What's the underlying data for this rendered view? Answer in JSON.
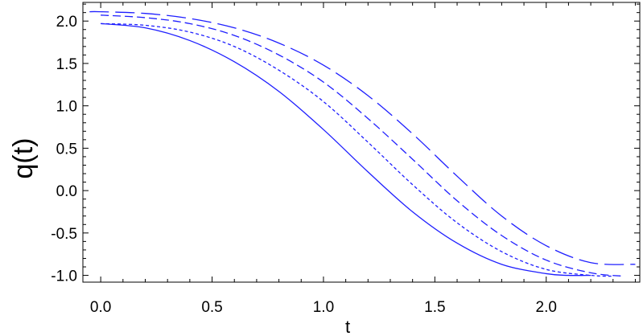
{
  "chart_data": {
    "type": "line",
    "xlabel": "t",
    "ylabel": "q(t)",
    "xlim": [
      -0.08,
      2.42
    ],
    "ylim": [
      -1.08,
      2.22
    ],
    "xticks": [
      "0.0",
      "0.5",
      "1.0",
      "1.5",
      "2.0"
    ],
    "yticks": [
      "-1.0",
      "-0.5",
      "0.0",
      "0.5",
      "1.0",
      "1.5",
      "2.0"
    ],
    "grid": false,
    "line_color": "#1f1fff",
    "series": [
      {
        "style": "solid",
        "x": [
          0.0,
          0.2,
          0.4,
          0.6,
          0.8,
          1.0,
          1.2,
          1.4,
          1.6,
          1.8,
          2.0,
          2.1,
          2.2
        ],
        "y": [
          1.97,
          1.92,
          1.77,
          1.52,
          1.17,
          0.72,
          0.22,
          -0.25,
          -0.62,
          -0.87,
          -0.98,
          -1.0,
          -1.0
        ]
      },
      {
        "style": "short-dash",
        "x": [
          0.0,
          0.2,
          0.4,
          0.6,
          0.8,
          1.0,
          1.2,
          1.4,
          1.6,
          1.8,
          2.0,
          2.2,
          2.3
        ],
        "y": [
          1.97,
          1.95,
          1.87,
          1.7,
          1.42,
          1.05,
          0.57,
          0.07,
          -0.38,
          -0.72,
          -0.93,
          -1.0,
          -1.01
        ]
      },
      {
        "style": "medium-dash",
        "x": [
          0.0,
          0.2,
          0.4,
          0.6,
          0.8,
          1.0,
          1.2,
          1.4,
          1.6,
          1.8,
          2.0,
          2.2,
          2.35
        ],
        "y": [
          2.07,
          2.04,
          1.97,
          1.83,
          1.6,
          1.28,
          0.85,
          0.37,
          -0.12,
          -0.53,
          -0.82,
          -0.97,
          -1.01
        ]
      },
      {
        "style": "long-dash",
        "x": [
          -0.05,
          0.0,
          0.2,
          0.4,
          0.6,
          0.8,
          1.0,
          1.2,
          1.4,
          1.6,
          1.8,
          2.0,
          2.2,
          2.4
        ],
        "y": [
          2.11,
          2.11,
          2.09,
          2.03,
          1.92,
          1.74,
          1.48,
          1.12,
          0.67,
          0.17,
          -0.3,
          -0.65,
          -0.85,
          -0.87
        ]
      }
    ]
  }
}
